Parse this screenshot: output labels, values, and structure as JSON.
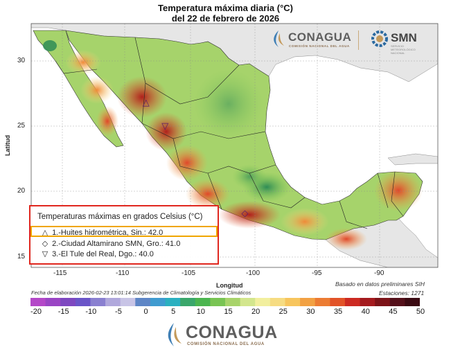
{
  "header": {
    "title_line1": "Temperatura máxima diaria (°C)",
    "title_line2": "del 22 de febrero de 2026"
  },
  "axes": {
    "ylabel": "Latitud",
    "xlabel": "Longitud",
    "lat_ticks": [
      "30",
      "25",
      "20",
      "15"
    ],
    "lon_ticks": [
      "-115",
      "-110",
      "-105",
      "-100",
      "-95",
      "-90"
    ]
  },
  "logos": {
    "conagua_top": "CONAGUA",
    "conagua_top_sub": "COMISIÓN NACIONAL DEL AGUA",
    "smn": "SMN",
    "smn_sub": "SERVICIO METEOROLÓGICO NACIONAL",
    "conagua_bottom": "CONAGUA",
    "conagua_bottom_sub": "COMISIÓN NACIONAL DEL AGUA"
  },
  "legend": {
    "title": "Temperaturas máximas en grados Celsius (°C)",
    "items": [
      {
        "symbol": "△",
        "text": "1.-Huites hidrométrica, Sin.: 42.0"
      },
      {
        "symbol": "◇",
        "text": "2.-Ciudad Altamirano SMN, Gro.: 41.0"
      },
      {
        "symbol": "▽",
        "text": "3.-El Tule del Real, Dgo.: 40.0"
      }
    ]
  },
  "footer": {
    "elaboracion": "Fecha de elaboración 2026-02-23 13:01:14 Subgerencia de Climatología y Servicios Climáticos",
    "basado": "Basado en datos preliminares SIH",
    "estaciones": "Estaciones:  1271"
  },
  "colorbar": {
    "ticks": [
      "-20",
      "-15",
      "-10",
      "-5",
      "0",
      "5",
      "10",
      "15",
      "20",
      "25",
      "30",
      "35",
      "40",
      "45",
      "50"
    ],
    "colors": [
      "#b448c8",
      "#9a45c4",
      "#7e48c0",
      "#6a55c8",
      "#8a80d0",
      "#b0a8dc",
      "#c8c4e6",
      "#5e86c6",
      "#3f9bd0",
      "#2bb0c0",
      "#3aa76b",
      "#4bb54f",
      "#79c453",
      "#a8d36a",
      "#d3e68d",
      "#f2ef9e",
      "#f6dc82",
      "#f7c55d",
      "#f2a143",
      "#ec7c33",
      "#e25328",
      "#cc2a22",
      "#a41a1e",
      "#7c1318",
      "#54101a",
      "#3a0a12"
    ]
  },
  "stations": [
    {
      "rank": "1",
      "symbol": "△",
      "lat": 26.8,
      "lon": -108.4
    },
    {
      "rank": "2",
      "symbol": "◇",
      "lat": 18.3,
      "lon": -100.6
    },
    {
      "rank": "3",
      "symbol": "▽",
      "lat": 25.0,
      "lon": -106.9
    }
  ]
}
